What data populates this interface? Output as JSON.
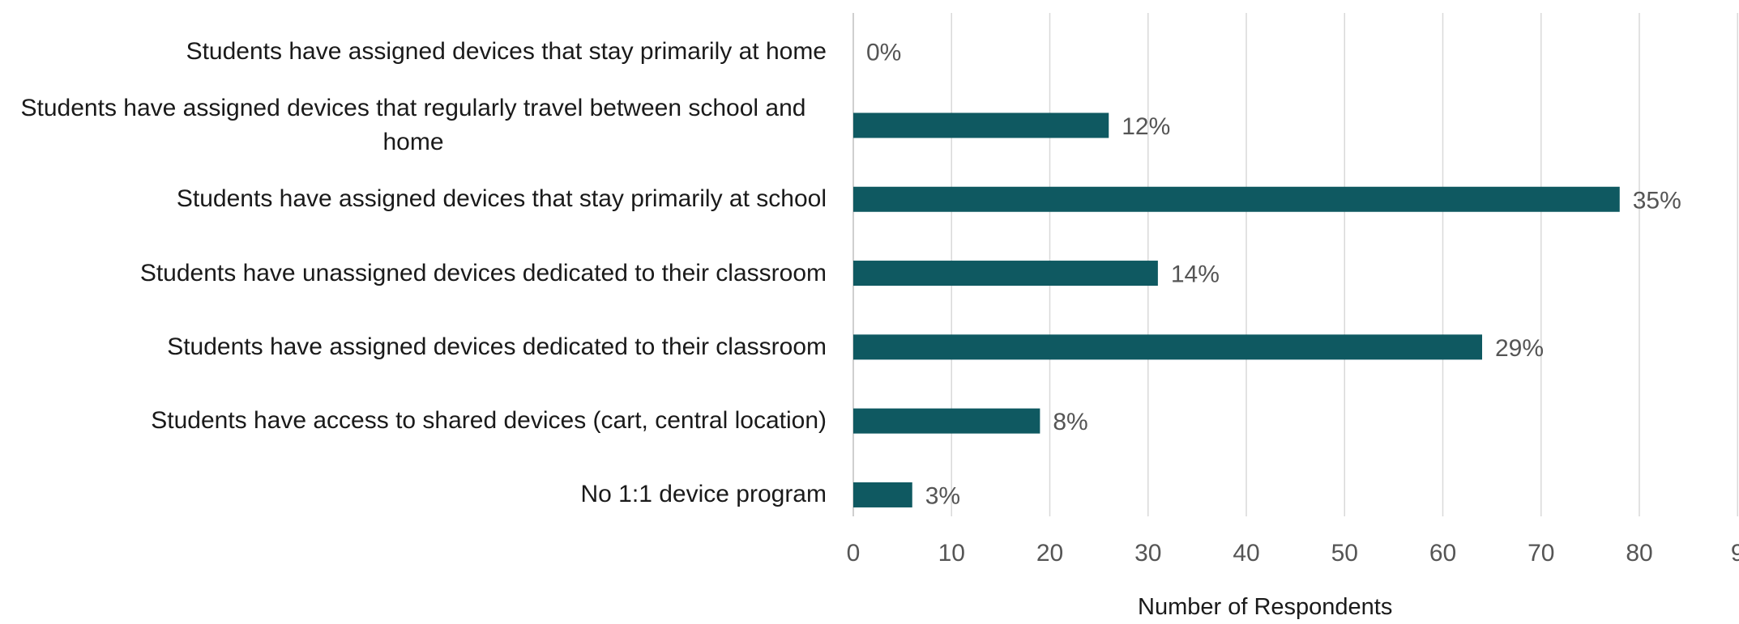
{
  "chart_data": {
    "type": "bar",
    "orientation": "horizontal",
    "categories": [
      "Students have assigned devices that stay primarily at home",
      "Students have assigned devices that regularly travel between school and home",
      "Students have assigned devices that stay primarily at school",
      "Students have unassigned devices dedicated to their classroom",
      "Students have assigned devices dedicated to their classroom",
      "Students have access to shared devices (cart, central location)",
      "No 1:1 device program"
    ],
    "values": [
      0,
      26,
      78,
      31,
      64,
      19,
      6
    ],
    "data_labels": [
      "0%",
      "12%",
      "35%",
      "14%",
      "29%",
      "8%",
      "3%"
    ],
    "xlabel": "Number of Respondents",
    "ylabel": "",
    "title": "",
    "xlim": [
      0,
      90
    ],
    "x_ticks": [
      "0",
      "10",
      "20",
      "30",
      "40",
      "50",
      "60",
      "70",
      "80",
      "9"
    ],
    "grid": true,
    "bar_color": "#0f5961"
  }
}
